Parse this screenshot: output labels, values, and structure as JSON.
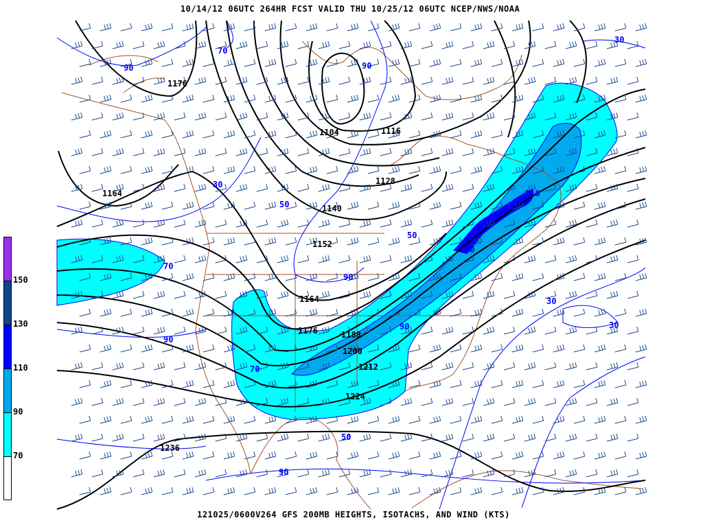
{
  "header": {
    "title": "10/14/12 06UTC  264HR  FCST VALID THU 10/25/12 06UTC  NCEP/NWS/NOAA"
  },
  "footer": {
    "title": "121025/0600V264 GFS 200MB HEIGHTS, ISOTACHS, AND WIND (KTS)"
  },
  "legend": {
    "labels": [
      "150",
      "130",
      "110",
      "90",
      "70"
    ],
    "colors": [
      "#9933ee",
      "#114488",
      "#0000ff",
      "#00aaee",
      "#00ffff",
      "#ffffff"
    ]
  },
  "colors": {
    "height_contours": "#000000",
    "isotachs": "#0000ff",
    "coastlines": "#a0522d",
    "wind_barbs": "#1a4a8a"
  },
  "height_labels": [
    "1176",
    "1104",
    "1116",
    "1128",
    "1164",
    "1140",
    "1152",
    "1164",
    "1176",
    "1188",
    "1200",
    "1212",
    "1224",
    "1236"
  ],
  "isotach_labels": [
    "70",
    "90",
    "90",
    "30",
    "50",
    "50",
    "70",
    "90",
    "30",
    "30",
    "90",
    "70",
    "90",
    "30",
    "90",
    "50",
    "30",
    "110"
  ]
}
